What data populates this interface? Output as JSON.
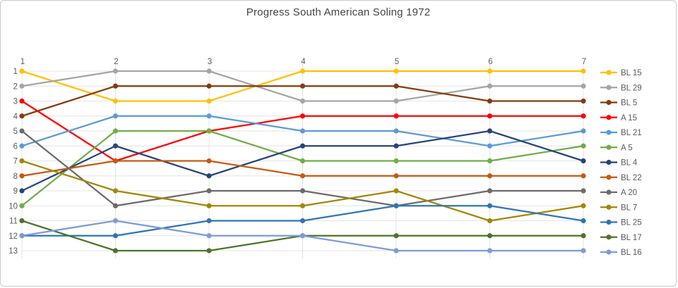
{
  "chart_data": {
    "type": "line",
    "title": "Progress South American Soling 1972",
    "xlabel": "",
    "ylabel": "",
    "x": [
      1,
      2,
      3,
      4,
      5,
      6,
      7
    ],
    "x_tick_labels": [
      "1",
      "2",
      "3",
      "4",
      "5",
      "6",
      "7"
    ],
    "y_tick_labels": [
      "1",
      "2",
      "3",
      "4",
      "5",
      "6",
      "7",
      "8",
      "9",
      "10",
      "11",
      "12",
      "13"
    ],
    "y_axis": {
      "min": 1,
      "max": 13,
      "inverted": true,
      "meaning": "ranking position, 1 = best"
    },
    "grid": true,
    "legend_position": "right",
    "marker": "circle",
    "series": [
      {
        "name": "BL 15",
        "color": "#FFC000",
        "values": [
          1,
          3,
          3,
          1,
          1,
          1,
          1
        ]
      },
      {
        "name": "BL 29",
        "color": "#A5A5A5",
        "values": [
          2,
          1,
          1,
          3,
          3,
          2,
          2
        ]
      },
      {
        "name": "BL 5",
        "color": "#843C0C",
        "values": [
          4,
          2,
          2,
          2,
          2,
          3,
          3
        ]
      },
      {
        "name": "A 15",
        "color": "#FF0000",
        "values": [
          3,
          7,
          5,
          4,
          4,
          4,
          4
        ]
      },
      {
        "name": "BL 21",
        "color": "#5B9BD5",
        "values": [
          6,
          4,
          4,
          5,
          5,
          6,
          5
        ]
      },
      {
        "name": "A 5",
        "color": "#70AD47",
        "values": [
          10,
          5,
          5,
          7,
          7,
          7,
          6
        ]
      },
      {
        "name": "BL 4",
        "color": "#264478",
        "values": [
          9,
          6,
          8,
          6,
          6,
          5,
          7
        ]
      },
      {
        "name": "BL 22",
        "color": "#C55A11",
        "values": [
          8,
          7,
          7,
          8,
          8,
          8,
          8
        ]
      },
      {
        "name": "A 20",
        "color": "#6B6B6B",
        "values": [
          5,
          10,
          9,
          9,
          10,
          9,
          9
        ]
      },
      {
        "name": "BL 7",
        "color": "#A38600",
        "values": [
          7,
          9,
          10,
          10,
          9,
          11,
          10
        ]
      },
      {
        "name": "BL 25",
        "color": "#2E75B6",
        "values": [
          12,
          12,
          11,
          11,
          10,
          10,
          11
        ]
      },
      {
        "name": "BL 17",
        "color": "#4E7328",
        "values": [
          11,
          13,
          13,
          12,
          12,
          12,
          12
        ]
      },
      {
        "name": "BL 16",
        "color": "#7C9BD8",
        "values": [
          12,
          11,
          12,
          12,
          13,
          13,
          13
        ]
      }
    ],
    "ties_note": "shared markers: race1 pos12 BL25+BL16, race2 pos7 A15+BL22, race3 pos5 A15+A5, race4 pos12 BL17+BL16, race5 pos10 A20+BL25"
  },
  "colors": {
    "background": "#FFFFFF",
    "border": "#C9C9C9",
    "grid": "#E4E4E4",
    "tick_label": "#595959",
    "title": "#444444"
  }
}
